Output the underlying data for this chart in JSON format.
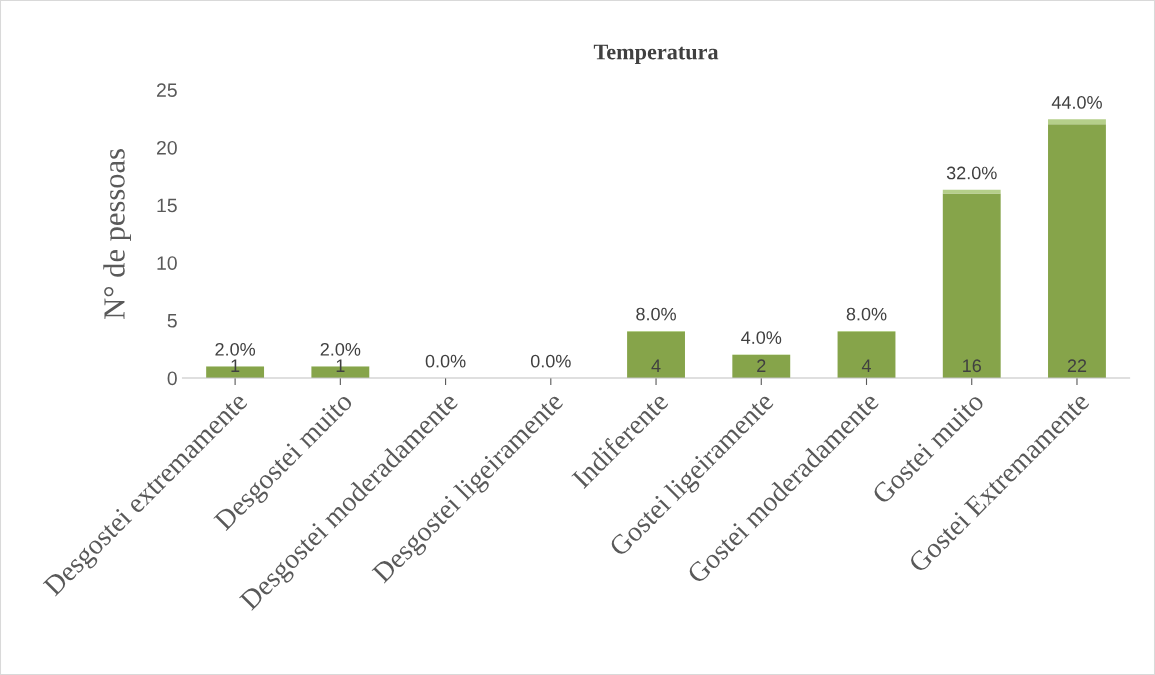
{
  "chart_data": {
    "type": "bar",
    "title": "Temperatura",
    "ylabel": "N° de pessoas",
    "categories": [
      "Desgostei extremamente",
      "Desgostei muito",
      "Desgostei moderadamente",
      "Desgostei ligeiramente",
      "Indiferente",
      "Gostei ligeiramente",
      "Gostei moderadamente",
      "Gostei muito",
      "Gostei Extremamente"
    ],
    "stacked": true,
    "series": [
      {
        "color": "#86a44a",
        "values": [
          1,
          1,
          0,
          0,
          4,
          2,
          4,
          16,
          22
        ],
        "value_labels": [
          "1",
          "1",
          null,
          null,
          "4",
          "2",
          "4",
          "16",
          "22"
        ]
      },
      {
        "color": "#b5cf8a",
        "values": [
          0.02,
          0.02,
          0,
          0,
          0.08,
          0.04,
          0.08,
          0.32,
          0.44
        ],
        "value_labels": [
          "2.0%",
          "2.0%",
          "0.0%",
          "0.0%",
          "8.0%",
          "4.0%",
          "8.0%",
          "32.0%",
          "44.0%"
        ]
      }
    ],
    "ylim": [
      0,
      25
    ],
    "yticks": [
      0,
      5,
      10,
      15,
      20,
      25
    ],
    "grid": false,
    "legend": false
  }
}
